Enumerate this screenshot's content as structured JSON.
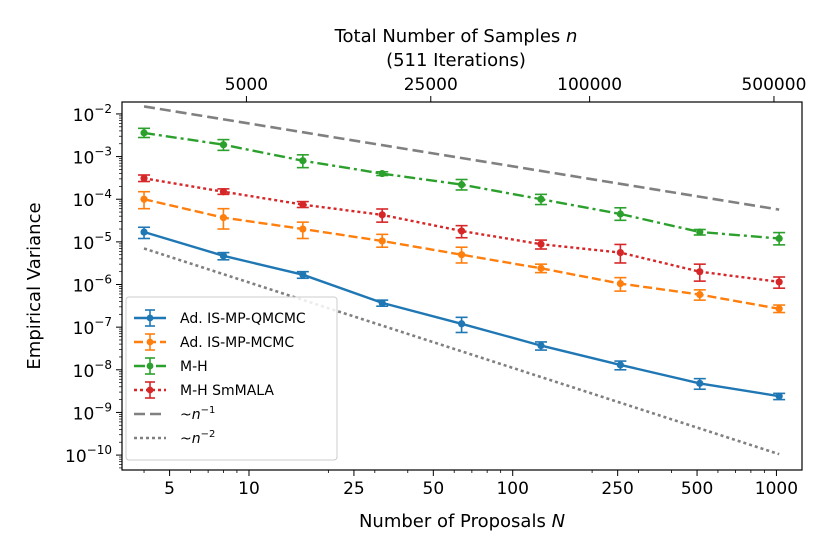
{
  "chart_data": {
    "type": "line",
    "scale": {
      "x": "log",
      "y": "log"
    },
    "xlabel_main": "Number of Proposals ",
    "xlabel_var": "N",
    "ylabel": "Empirical Variance",
    "top_title_line1_main": "Total Number of Samples ",
    "top_title_line1_var": "n",
    "top_title_line2": "(511 Iterations)",
    "xlim": [
      3.3,
      1250
    ],
    "ylim_exp": [
      -10.35,
      -1.72
    ],
    "x_ticks": [
      {
        "value": 5,
        "label": "5"
      },
      {
        "value": 10,
        "label": "10"
      },
      {
        "value": 25,
        "label": "25"
      },
      {
        "value": 50,
        "label": "50"
      },
      {
        "value": 100,
        "label": "100"
      },
      {
        "value": 250,
        "label": "250"
      },
      {
        "value": 500,
        "label": "500"
      },
      {
        "value": 1000,
        "label": "1000"
      }
    ],
    "top_ticks": [
      {
        "value": 9.78,
        "label": "5000"
      },
      {
        "value": 48.9,
        "label": "25000"
      },
      {
        "value": 195.7,
        "label": "100000"
      },
      {
        "value": 978.5,
        "label": "500000"
      }
    ],
    "y_ticks": [
      {
        "exp": -2,
        "label": "-2"
      },
      {
        "exp": -3,
        "label": "-3"
      },
      {
        "exp": -4,
        "label": "-4"
      },
      {
        "exp": -5,
        "label": "-5"
      },
      {
        "exp": -6,
        "label": "-6"
      },
      {
        "exp": -7,
        "label": "-7"
      },
      {
        "exp": -8,
        "label": "-8"
      },
      {
        "exp": -9,
        "label": "-9"
      },
      {
        "exp": -10,
        "label": "-10"
      }
    ],
    "x": [
      4,
      8,
      16,
      32,
      64,
      128,
      256,
      512,
      1024
    ],
    "series": [
      {
        "name": "Ad. IS-MP-QMCMC",
        "color": "#1f77b4",
        "dash": "",
        "values": [
          1.7e-05,
          4.7e-06,
          1.7e-06,
          3.7e-07,
          1.2e-07,
          3.7e-08,
          1.3e-08,
          4.8e-09,
          2.4e-09
        ],
        "err_lo": [
          1.2e-05,
          3.8e-06,
          1.4e-06,
          3.1e-07,
          7.5e-08,
          2.9e-08,
          1e-08,
          3.5e-09,
          2e-09
        ],
        "err_hi": [
          2.2e-05,
          5.6e-06,
          2e-06,
          4.3e-07,
          1.7e-07,
          4.5e-08,
          1.6e-08,
          6.2e-09,
          2.8e-09
        ]
      },
      {
        "name": "Ad. IS-MP-MCMC",
        "color": "#ff7f0e",
        "dash": "9,4",
        "values": [
          0.0001,
          3.7e-05,
          2e-05,
          1.05e-05,
          5e-06,
          2.4e-06,
          1.05e-06,
          5.8e-07,
          2.7e-07
        ],
        "err_lo": [
          6e-05,
          2e-05,
          1.2e-05,
          7.5e-06,
          3.2e-06,
          1.9e-06,
          7e-07,
          4.3e-07,
          2.2e-07
        ],
        "err_hi": [
          0.00015,
          6e-05,
          2.9e-05,
          1.5e-05,
          7.5e-06,
          3e-06,
          1.45e-06,
          7.5e-07,
          3.3e-07
        ]
      },
      {
        "name": "M-H",
        "color": "#2ca02c",
        "dash": "11,4,3,4",
        "values": [
          0.0036,
          0.0019,
          0.0008,
          0.0004,
          0.00022,
          0.0001,
          4.5e-05,
          1.7e-05,
          1.2e-05
        ],
        "err_lo": [
          0.0028,
          0.0014,
          0.00055,
          0.00036,
          0.000165,
          7.5e-05,
          3.2e-05,
          1.45e-05,
          8.5e-06
        ],
        "err_hi": [
          0.0046,
          0.0025,
          0.0011,
          0.00044,
          0.00029,
          0.00013,
          6.3e-05,
          1.95e-05,
          1.65e-05
        ]
      },
      {
        "name": "M-H SmMALA",
        "color": "#d62728",
        "dash": "3,3",
        "values": [
          0.00031,
          0.00015,
          7.5e-05,
          4.3e-05,
          1.8e-05,
          8.8e-06,
          5.6e-06,
          2e-06,
          1.15e-06
        ],
        "err_lo": [
          0.00026,
          0.00013,
          6.4e-05,
          2.9e-05,
          1.25e-05,
          6.8e-06,
          3.2e-06,
          1.2e-06,
          8.2e-07
        ],
        "err_hi": [
          0.00037,
          0.000175,
          8.8e-05,
          5.9e-05,
          2.4e-05,
          1.1e-05,
          8.7e-06,
          3e-06,
          1.5e-06
        ]
      }
    ],
    "reference_lines": [
      {
        "name": "~n",
        "exp_label": "−1",
        "color": "#808080",
        "dash": "11,5",
        "points": [
          [
            4,
            0.015
          ],
          [
            1024,
            5.7e-05
          ]
        ]
      },
      {
        "name": "~n",
        "exp_label": "−2",
        "color": "#808080",
        "dash": "3,3",
        "points": [
          [
            4,
            7e-06
          ],
          [
            1024,
            1.05e-10
          ]
        ]
      }
    ],
    "legend_position": "lower-left"
  }
}
